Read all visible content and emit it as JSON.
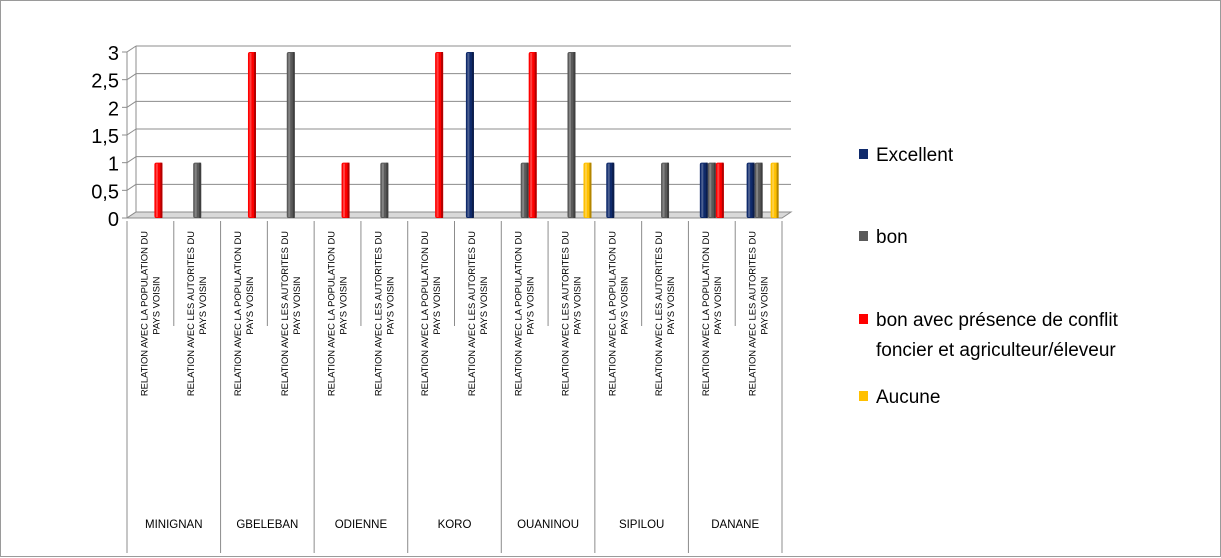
{
  "chart_data": {
    "type": "bar",
    "title": "",
    "xlabel": "",
    "ylabel": "",
    "ylim": [
      0,
      3
    ],
    "yticks": [
      "0",
      "0,5",
      "1",
      "1,5",
      "2",
      "2,5",
      "3"
    ],
    "grid": true,
    "legend_position": "right",
    "groups": [
      {
        "name": "MINIGNAN",
        "categories": [
          "RELATION AVEC LA POPULATION DU PAYS VOISIN",
          "RELATION AVEC LES AUTORITES DU PAYS VOISIN"
        ]
      },
      {
        "name": "GBELEBAN",
        "categories": [
          "RELATION AVEC LA POPULATION DU PAYS VOISIN",
          "RELATION AVEC LES AUTORITES DU PAYS VOISIN"
        ]
      },
      {
        "name": "ODIENNE",
        "categories": [
          "RELATION AVEC LA POPULATION DU PAYS VOISIN",
          "RELATION AVEC LES AUTORITES DU PAYS VOISIN"
        ]
      },
      {
        "name": "KORO",
        "categories": [
          "RELATION AVEC LA POPULATION DU PAYS VOISIN",
          "RELATION AVEC LES AUTORITES DU PAYS VOISIN"
        ]
      },
      {
        "name": "OUANINOU",
        "categories": [
          "RELATION AVEC LA POPULATION DU PAYS VOISIN",
          "RELATION AVEC LES AUTORITES DU PAYS VOISIN"
        ]
      },
      {
        "name": "SIPILOU",
        "categories": [
          "RELATION AVEC LA POPULATION DU PAYS VOISIN",
          "RELATION AVEC LES AUTORITES DU PAYS VOISIN"
        ]
      },
      {
        "name": "DANANE",
        "categories": [
          "RELATION AVEC LA POPULATION DU PAYS VOISIN",
          "RELATION AVEC LES AUTORITES DU PAYS VOISIN"
        ]
      }
    ],
    "series": [
      {
        "name": "Excellent",
        "color": "#0f2a6b",
        "values": [
          0,
          0,
          0,
          0,
          0,
          0,
          0,
          3,
          0,
          0,
          1,
          0,
          1,
          1
        ]
      },
      {
        "name": "bon",
        "color": "#5a5a5a",
        "values": [
          0,
          1,
          0,
          3,
          0,
          1,
          0,
          0,
          1,
          3,
          0,
          1,
          1,
          1
        ]
      },
      {
        "name": "bon avec présence de conflit foncier et agriculteur/éleveur",
        "color": "#ff0000",
        "values": [
          1,
          0,
          3,
          0,
          1,
          0,
          3,
          0,
          3,
          0,
          0,
          0,
          1,
          0
        ]
      },
      {
        "name": "Aucune",
        "color": "#ffc000",
        "values": [
          0,
          0,
          0,
          0,
          0,
          0,
          0,
          0,
          0,
          1,
          0,
          0,
          0,
          1
        ]
      }
    ]
  }
}
